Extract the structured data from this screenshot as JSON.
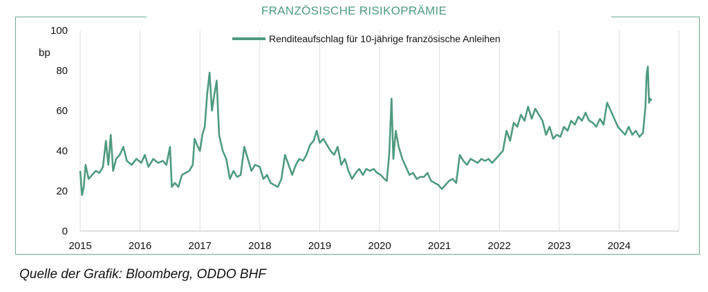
{
  "chart_data": {
    "type": "line",
    "title": "FRANZÖSISCHE RISIKOPRÄMIE",
    "ylabel": "bp",
    "xlabel": "",
    "ylim": [
      0,
      100
    ],
    "yticks": [
      0,
      20,
      40,
      60,
      80,
      100
    ],
    "xticks": [
      "2015",
      "2016",
      "2017",
      "2018",
      "2019",
      "2020",
      "2021",
      "2022",
      "2023",
      "2024"
    ],
    "xlim": [
      2015.0,
      2025.0
    ],
    "grid": "vertical",
    "legend_position": "top-center",
    "line_color": "#4f9a7e",
    "series": [
      {
        "name": "Renditeaufschlag für 10-jährige französische Anleihen",
        "points": [
          [
            2015.0,
            30
          ],
          [
            2015.03,
            18
          ],
          [
            2015.06,
            22
          ],
          [
            2015.09,
            33
          ],
          [
            2015.14,
            26
          ],
          [
            2015.2,
            28
          ],
          [
            2015.26,
            30
          ],
          [
            2015.32,
            29
          ],
          [
            2015.38,
            32
          ],
          [
            2015.43,
            45
          ],
          [
            2015.47,
            33
          ],
          [
            2015.51,
            48
          ],
          [
            2015.55,
            30
          ],
          [
            2015.6,
            36
          ],
          [
            2015.66,
            38
          ],
          [
            2015.72,
            42
          ],
          [
            2015.78,
            35
          ],
          [
            2015.86,
            33
          ],
          [
            2015.94,
            36
          ],
          [
            2016.02,
            34
          ],
          [
            2016.08,
            38
          ],
          [
            2016.14,
            32
          ],
          [
            2016.22,
            36
          ],
          [
            2016.3,
            34
          ],
          [
            2016.38,
            35
          ],
          [
            2016.44,
            33
          ],
          [
            2016.5,
            42
          ],
          [
            2016.53,
            22
          ],
          [
            2016.58,
            24
          ],
          [
            2016.64,
            22
          ],
          [
            2016.7,
            28
          ],
          [
            2016.76,
            29
          ],
          [
            2016.82,
            30
          ],
          [
            2016.88,
            33
          ],
          [
            2016.91,
            46
          ],
          [
            2016.95,
            43
          ],
          [
            2017.0,
            40
          ],
          [
            2017.04,
            48
          ],
          [
            2017.08,
            52
          ],
          [
            2017.12,
            68
          ],
          [
            2017.16,
            79
          ],
          [
            2017.2,
            60
          ],
          [
            2017.24,
            68
          ],
          [
            2017.28,
            75
          ],
          [
            2017.32,
            48
          ],
          [
            2017.38,
            40
          ],
          [
            2017.44,
            36
          ],
          [
            2017.5,
            26
          ],
          [
            2017.56,
            30
          ],
          [
            2017.62,
            27
          ],
          [
            2017.68,
            28
          ],
          [
            2017.74,
            42
          ],
          [
            2017.8,
            36
          ],
          [
            2017.86,
            30
          ],
          [
            2017.92,
            33
          ],
          [
            2018.0,
            32
          ],
          [
            2018.06,
            26
          ],
          [
            2018.12,
            28
          ],
          [
            2018.18,
            24
          ],
          [
            2018.24,
            23
          ],
          [
            2018.3,
            22
          ],
          [
            2018.36,
            26
          ],
          [
            2018.42,
            38
          ],
          [
            2018.48,
            33
          ],
          [
            2018.54,
            28
          ],
          [
            2018.6,
            33
          ],
          [
            2018.66,
            36
          ],
          [
            2018.72,
            35
          ],
          [
            2018.78,
            38
          ],
          [
            2018.84,
            43
          ],
          [
            2018.9,
            45
          ],
          [
            2018.95,
            50
          ],
          [
            2019.0,
            44
          ],
          [
            2019.06,
            46
          ],
          [
            2019.12,
            43
          ],
          [
            2019.18,
            40
          ],
          [
            2019.24,
            38
          ],
          [
            2019.3,
            42
          ],
          [
            2019.36,
            33
          ],
          [
            2019.42,
            36
          ],
          [
            2019.48,
            30
          ],
          [
            2019.54,
            26
          ],
          [
            2019.6,
            29
          ],
          [
            2019.66,
            31
          ],
          [
            2019.72,
            28
          ],
          [
            2019.78,
            31
          ],
          [
            2019.84,
            30
          ],
          [
            2019.9,
            31
          ],
          [
            2019.96,
            29
          ],
          [
            2020.02,
            28
          ],
          [
            2020.08,
            26
          ],
          [
            2020.12,
            25
          ],
          [
            2020.16,
            38
          ],
          [
            2020.2,
            66
          ],
          [
            2020.23,
            36
          ],
          [
            2020.27,
            50
          ],
          [
            2020.32,
            42
          ],
          [
            2020.38,
            36
          ],
          [
            2020.44,
            32
          ],
          [
            2020.5,
            28
          ],
          [
            2020.56,
            29
          ],
          [
            2020.62,
            26
          ],
          [
            2020.68,
            27
          ],
          [
            2020.74,
            27
          ],
          [
            2020.8,
            29
          ],
          [
            2020.86,
            25
          ],
          [
            2020.92,
            24
          ],
          [
            2020.98,
            23
          ],
          [
            2021.04,
            21
          ],
          [
            2021.1,
            23
          ],
          [
            2021.16,
            25
          ],
          [
            2021.22,
            26
          ],
          [
            2021.28,
            24
          ],
          [
            2021.34,
            38
          ],
          [
            2021.4,
            35
          ],
          [
            2021.46,
            33
          ],
          [
            2021.52,
            36
          ],
          [
            2021.58,
            35
          ],
          [
            2021.64,
            34
          ],
          [
            2021.7,
            36
          ],
          [
            2021.76,
            35
          ],
          [
            2021.82,
            36
          ],
          [
            2021.88,
            34
          ],
          [
            2021.94,
            36
          ],
          [
            2022.0,
            38
          ],
          [
            2022.06,
            40
          ],
          [
            2022.12,
            50
          ],
          [
            2022.18,
            45
          ],
          [
            2022.24,
            54
          ],
          [
            2022.3,
            52
          ],
          [
            2022.36,
            58
          ],
          [
            2022.42,
            55
          ],
          [
            2022.48,
            62
          ],
          [
            2022.54,
            56
          ],
          [
            2022.6,
            61
          ],
          [
            2022.66,
            58
          ],
          [
            2022.72,
            55
          ],
          [
            2022.78,
            48
          ],
          [
            2022.84,
            52
          ],
          [
            2022.9,
            46
          ],
          [
            2022.96,
            48
          ],
          [
            2023.02,
            47
          ],
          [
            2023.08,
            52
          ],
          [
            2023.14,
            50
          ],
          [
            2023.2,
            55
          ],
          [
            2023.26,
            53
          ],
          [
            2023.32,
            57
          ],
          [
            2023.38,
            55
          ],
          [
            2023.44,
            59
          ],
          [
            2023.5,
            55
          ],
          [
            2023.56,
            54
          ],
          [
            2023.62,
            52
          ],
          [
            2023.68,
            56
          ],
          [
            2023.74,
            53
          ],
          [
            2023.8,
            64
          ],
          [
            2023.86,
            60
          ],
          [
            2023.92,
            56
          ],
          [
            2023.98,
            52
          ],
          [
            2024.04,
            50
          ],
          [
            2024.1,
            48
          ],
          [
            2024.16,
            52
          ],
          [
            2024.22,
            48
          ],
          [
            2024.28,
            50
          ],
          [
            2024.34,
            47
          ],
          [
            2024.4,
            49
          ],
          [
            2024.44,
            62
          ],
          [
            2024.46,
            78
          ],
          [
            2024.48,
            82
          ],
          [
            2024.5,
            64
          ],
          [
            2024.52,
            66
          ],
          [
            2024.54,
            65
          ]
        ]
      }
    ]
  },
  "source_note": "Quelle der Grafik: Bloomberg, ODDO BHF"
}
